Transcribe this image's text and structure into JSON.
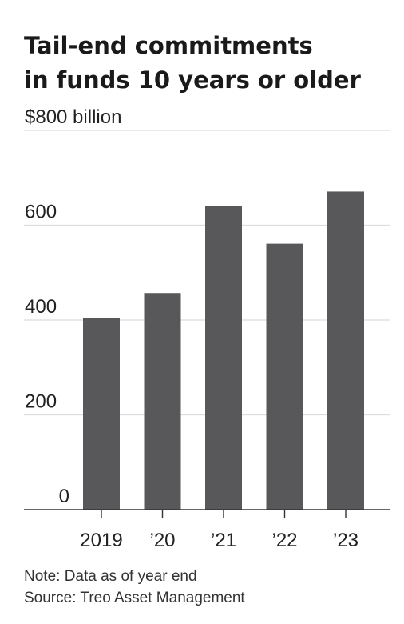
{
  "chart_data": {
    "type": "bar",
    "title_lines": [
      "Tail-end commitments",
      "in funds 10 years or older"
    ],
    "categories": [
      "2019",
      "’20",
      "’21",
      "’22",
      "’23"
    ],
    "values": [
      405,
      457,
      641,
      561,
      671
    ],
    "ylim": [
      0,
      800
    ],
    "yticks": [
      0,
      200,
      400,
      600,
      800
    ],
    "ytick_labels": [
      "0",
      "200",
      "400",
      "600",
      "$800 billion"
    ],
    "grid": true,
    "bar_color": "#58585a",
    "grid_color": "#dcdcdc",
    "axis_color": "#333333"
  },
  "note": "Note: Data as of year end",
  "source": "Source: Treo Asset Management"
}
